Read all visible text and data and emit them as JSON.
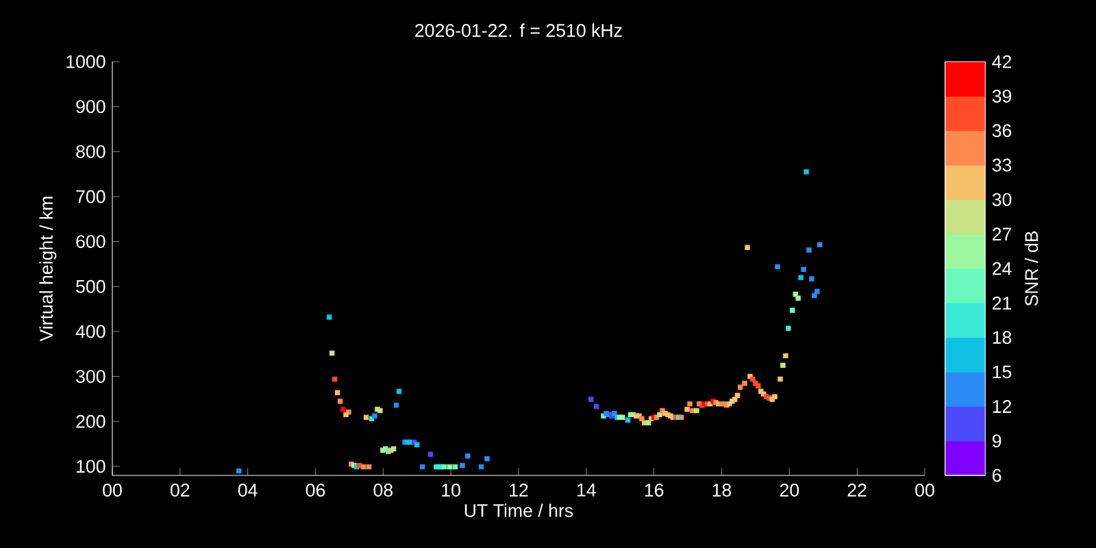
{
  "chart_data": {
    "type": "scatter",
    "title": "2026-01-22. f = 2510 kHz",
    "xlabel": "UT Time / hrs",
    "ylabel": "Virtual height / km",
    "clabel": "SNR / dB",
    "marker": "square",
    "xlim": [
      0,
      24
    ],
    "ylim": [
      80,
      1000
    ],
    "xticks": [
      {
        "value": 0,
        "label": "00"
      },
      {
        "value": 2,
        "label": "02"
      },
      {
        "value": 4,
        "label": "04"
      },
      {
        "value": 6,
        "label": "06"
      },
      {
        "value": 8,
        "label": "08"
      },
      {
        "value": 10,
        "label": "10"
      },
      {
        "value": 12,
        "label": "12"
      },
      {
        "value": 14,
        "label": "14"
      },
      {
        "value": 16,
        "label": "16"
      },
      {
        "value": 18,
        "label": "18"
      },
      {
        "value": 20,
        "label": "20"
      },
      {
        "value": 22,
        "label": "22"
      },
      {
        "value": 24,
        "label": "00"
      }
    ],
    "yticks": [
      100,
      200,
      300,
      400,
      500,
      600,
      700,
      800,
      900,
      1000
    ],
    "clim": [
      6,
      42
    ],
    "cticks": [
      6,
      9,
      12,
      15,
      18,
      21,
      24,
      27,
      30,
      33,
      36,
      39,
      42
    ],
    "x": [
      3.74,
      6.41,
      6.49,
      6.57,
      6.65,
      6.73,
      6.81,
      6.98,
      6.9,
      7.5,
      7.66,
      7.75,
      7.83,
      7.91,
      8.47,
      8.39,
      7.99,
      8.07,
      8.15,
      8.23,
      8.31,
      7.06,
      7.14,
      7.22,
      7.3,
      7.42,
      7.58,
      8.64,
      8.72,
      8.8,
      8.92,
      9.0,
      9.4,
      9.16,
      9.57,
      9.65,
      9.73,
      9.81,
      9.97,
      10.13,
      10.34,
      10.5,
      10.9,
      11.07,
      14.14,
      14.3,
      14.51,
      14.59,
      14.67,
      14.75,
      14.83,
      14.91,
      14.99,
      15.07,
      15.23,
      15.31,
      15.39,
      15.48,
      15.56,
      15.64,
      15.72,
      15.84,
      15.92,
      16.0,
      16.08,
      16.17,
      16.25,
      16.33,
      16.41,
      16.49,
      16.57,
      16.65,
      16.73,
      16.81,
      16.98,
      17.06,
      17.14,
      17.26,
      17.34,
      17.42,
      17.5,
      17.58,
      17.66,
      17.75,
      17.83,
      17.91,
      17.99,
      18.07,
      18.15,
      18.23,
      18.31,
      18.39,
      18.47,
      18.55,
      18.68,
      18.84,
      18.92,
      19.0,
      19.08,
      19.16,
      19.24,
      19.32,
      19.41,
      19.49,
      19.57,
      19.73,
      19.81,
      19.89,
      19.97,
      20.09,
      20.5,
      18.76,
      20.9,
      20.58,
      19.65,
      20.42,
      20.34,
      20.66,
      20.82,
      20.74,
      20.18,
      20.26
    ],
    "values": [
      90,
      432,
      352,
      294,
      264,
      245,
      227,
      221,
      215,
      209,
      206,
      212,
      227,
      224,
      267,
      236,
      136,
      139,
      133,
      136,
      139,
      105,
      102,
      99,
      102,
      99,
      99,
      154,
      154,
      154,
      154,
      148,
      127,
      99,
      99,
      99,
      99,
      99,
      99,
      99,
      102,
      123,
      99,
      117,
      249,
      233,
      212,
      218,
      215,
      212,
      218,
      209,
      209,
      209,
      203,
      215,
      215,
      212,
      212,
      206,
      197,
      197,
      206,
      209,
      209,
      215,
      224,
      218,
      215,
      212,
      209,
      209,
      209,
      209,
      227,
      239,
      224,
      224,
      239,
      236,
      239,
      239,
      239,
      245,
      242,
      239,
      239,
      239,
      236,
      239,
      245,
      249,
      258,
      276,
      285,
      300,
      294,
      285,
      279,
      267,
      261,
      255,
      252,
      249,
      255,
      294,
      325,
      346,
      407,
      447,
      755,
      587,
      593,
      581,
      544,
      538,
      520,
      517,
      489,
      480,
      483,
      474
    ],
    "cvalues": [
      13.5,
      16.5,
      28.5,
      37.5,
      31.5,
      34.5,
      40.5,
      34.5,
      31.5,
      31.5,
      19.5,
      13.5,
      28.5,
      28.5,
      16.5,
      13.5,
      25.5,
      25.5,
      22.5,
      31.5,
      25.5,
      34.5,
      25.5,
      16.5,
      37.5,
      34.5,
      34.5,
      13.5,
      16.5,
      16.5,
      10.5,
      16.5,
      10.5,
      13.5,
      19.5,
      19.5,
      19.5,
      22.5,
      25.5,
      22.5,
      13.5,
      13.5,
      13.5,
      13.5,
      10.5,
      10.5,
      22.5,
      13.5,
      13.5,
      10.5,
      13.5,
      16.5,
      25.5,
      25.5,
      16.5,
      25.5,
      25.5,
      31.5,
      31.5,
      34.5,
      31.5,
      25.5,
      31.5,
      40.5,
      34.5,
      28.5,
      34.5,
      31.5,
      31.5,
      31.5,
      31.5,
      37.5,
      19.5,
      34.5,
      31.5,
      34.5,
      34.5,
      28.5,
      34.5,
      37.5,
      40.5,
      37.5,
      31.5,
      40.5,
      34.5,
      31.5,
      34.5,
      34.5,
      34.5,
      31.5,
      28.5,
      31.5,
      31.5,
      34.5,
      34.5,
      31.5,
      37.5,
      37.5,
      37.5,
      31.5,
      31.5,
      37.5,
      37.5,
      31.5,
      31.5,
      31.5,
      28.5,
      31.5,
      19.5,
      22.5,
      16.5,
      31.5,
      13.5,
      13.5,
      13.5,
      13.5,
      16.5,
      13.5,
      13.5,
      13.5,
      25.5,
      25.5
    ]
  }
}
